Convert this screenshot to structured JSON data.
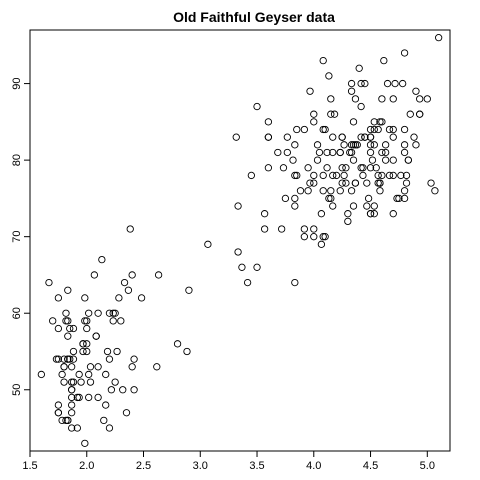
{
  "chart_data": {
    "type": "scatter",
    "title": "Old Faithful Geyser data",
    "xlabel": "",
    "ylabel": "",
    "xlim": [
      1.5,
      5.2
    ],
    "ylim": [
      42,
      97
    ],
    "xticks": [
      1.5,
      2.0,
      2.5,
      3.0,
      3.5,
      4.0,
      4.5,
      5.0
    ],
    "xtick_labels": [
      "1.5",
      "2.0",
      "2.5",
      "3.0",
      "3.5",
      "4.0",
      "4.5",
      "5.0"
    ],
    "yticks": [
      50,
      60,
      70,
      80,
      90
    ],
    "ytick_labels": [
      "50",
      "60",
      "70",
      "80",
      "90"
    ],
    "grid": false,
    "series": [
      {
        "x": [
          3.6,
          1.8,
          3.333,
          2.283,
          4.533,
          2.883,
          4.7,
          3.6,
          1.95,
          4.35,
          1.833,
          3.917,
          4.2,
          1.75,
          4.7,
          2.167,
          1.75,
          4.8,
          1.6,
          4.25,
          1.8,
          1.75,
          3.45,
          3.067,
          4.533,
          3.6,
          1.967,
          4.083,
          3.85,
          4.433,
          4.3,
          4.467,
          3.367,
          4.033,
          3.833,
          2.017,
          1.867,
          4.833,
          1.833,
          4.783,
          4.35,
          1.883,
          4.567,
          1.75,
          4.533,
          3.317,
          3.833,
          2.1,
          4.633,
          2.0,
          4.8,
          4.716,
          1.833,
          4.833,
          1.733,
          4.883,
          3.717,
          1.667,
          4.567,
          4.317,
          2.233,
          4.5,
          1.75,
          4.8,
          1.817,
          4.4,
          4.167,
          4.7,
          2.067,
          4.7,
          4.033,
          1.967,
          4.5,
          4.0,
          1.983,
          5.067,
          2.017,
          4.567,
          3.883,
          3.6,
          4.133,
          4.333,
          4.1,
          2.633,
          4.067,
          4.933,
          3.95,
          4.517,
          2.167,
          4.0,
          2.2,
          4.333,
          1.867,
          4.817,
          1.833,
          4.3,
          4.667,
          3.75,
          1.867,
          4.9,
          2.483,
          4.367,
          2.1,
          4.5,
          4.05,
          1.867,
          4.7,
          1.783,
          4.85,
          3.683,
          4.733,
          2.3,
          4.9,
          4.417,
          1.7,
          4.633,
          2.317,
          4.6,
          1.817,
          4.417,
          2.617,
          4.067,
          4.25,
          1.967,
          4.6,
          3.767,
          1.917,
          4.5,
          2.267,
          4.65,
          1.867,
          4.167,
          2.8,
          4.333,
          1.833,
          4.383,
          1.883,
          4.933,
          2.033,
          3.733,
          4.233,
          2.233,
          4.533,
          4.817,
          4.333,
          1.983,
          4.633,
          2.017,
          5.1,
          1.8,
          5.033,
          4.0,
          2.4,
          4.6,
          3.567,
          4.0,
          4.5,
          4.083,
          1.8,
          3.967,
          2.2,
          4.15,
          2.0,
          3.833,
          3.5,
          4.583,
          2.367,
          5.0,
          1.933,
          4.617,
          1.917,
          2.083,
          4.583,
          3.333,
          4.167,
          4.333,
          4.5,
          2.417,
          4.0,
          4.167,
          1.883,
          4.583,
          4.25,
          3.767,
          2.033,
          4.433,
          4.083,
          1.833,
          4.417,
          2.183,
          4.8,
          1.833,
          4.8,
          4.1,
          3.966,
          4.233,
          3.5,
          4.366,
          2.25,
          4.667,
          2.1,
          4.35,
          4.133,
          1.867,
          4.6,
          1.783,
          4.367,
          3.85,
          1.933,
          4.5,
          2.383,
          4.7,
          1.867,
          3.833,
          3.417,
          4.233,
          2.4,
          4.8,
          2.0,
          4.15,
          1.867,
          4.267,
          1.75,
          4.483,
          4.0,
          4.117,
          4.083,
          4.267,
          3.917,
          4.55,
          4.083,
          2.417,
          4.183,
          2.217,
          4.45,
          1.883,
          1.85,
          4.283,
          3.95,
          2.333,
          4.15,
          2.35,
          4.933,
          2.9,
          4.583,
          3.833,
          2.083,
          4.367,
          2.133,
          4.35,
          2.2,
          4.45,
          3.567,
          4.5,
          4.15,
          3.817,
          3.917,
          4.45,
          2.0,
          4.283,
          4.767,
          4.533,
          1.85,
          4.25,
          1.983,
          2.25,
          4.75,
          4.117,
          2.15,
          4.417,
          1.817,
          4.467
        ],
        "y": [
          79,
          54,
          74,
          62,
          85,
          55,
          88,
          85,
          51,
          85,
          54,
          84,
          78,
          47,
          83,
          52,
          62,
          84,
          52,
          79,
          51,
          47,
          78,
          69,
          74,
          83,
          55,
          76,
          78,
          79,
          73,
          77,
          66,
          80,
          74,
          52,
          48,
          80,
          59,
          90,
          80,
          58,
          84,
          58,
          73,
          83,
          64,
          53,
          82,
          59,
          75,
          90,
          54,
          80,
          54,
          83,
          71,
          64,
          77,
          81,
          59,
          84,
          48,
          82,
          60,
          92,
          78,
          78,
          65,
          73,
          82,
          56,
          79,
          71,
          62,
          76,
          60,
          78,
          76,
          83,
          75,
          82,
          70,
          65,
          73,
          88,
          76,
          80,
          48,
          86,
          60,
          90,
          50,
          78,
          63,
          72,
          84,
          75,
          51,
          82,
          62,
          88,
          49,
          83,
          81,
          47,
          84,
          52,
          86,
          81,
          75,
          59,
          89,
          79,
          59,
          81,
          50,
          85,
          59,
          87,
          53,
          69,
          77,
          56,
          88,
          81,
          45,
          82,
          55,
          90,
          45,
          83,
          56,
          89,
          46,
          82,
          51,
          86,
          53,
          79,
          81,
          60,
          82,
          77,
          76,
          59,
          80,
          49,
          96,
          53,
          77,
          77,
          65,
          81,
          71,
          70,
          81,
          93,
          53,
          89,
          45,
          86,
          58,
          78,
          66,
          76,
          63,
          88,
          52,
          93,
          49,
          57,
          77,
          68,
          81,
          81,
          73,
          50,
          85,
          74,
          55,
          77,
          83,
          83,
          51,
          78,
          84,
          46,
          83,
          55,
          81,
          57,
          76,
          84,
          77,
          81,
          87,
          77,
          51,
          78,
          60,
          82,
          91,
          53,
          78,
          46,
          77,
          84,
          49,
          83,
          71,
          80,
          49,
          75,
          64,
          76,
          53,
          94,
          55,
          76,
          50,
          82,
          54,
          75,
          78,
          79,
          78,
          78,
          70,
          79,
          70,
          54,
          86,
          50,
          90,
          54,
          54,
          77,
          79,
          64,
          75,
          47,
          86,
          63,
          85,
          82,
          57,
          82,
          67,
          74,
          54,
          83,
          73,
          73,
          88,
          80,
          71,
          83,
          56,
          79,
          78,
          84,
          58,
          83,
          43,
          60,
          75,
          81,
          46,
          90,
          46,
          74
        ]
      }
    ]
  }
}
